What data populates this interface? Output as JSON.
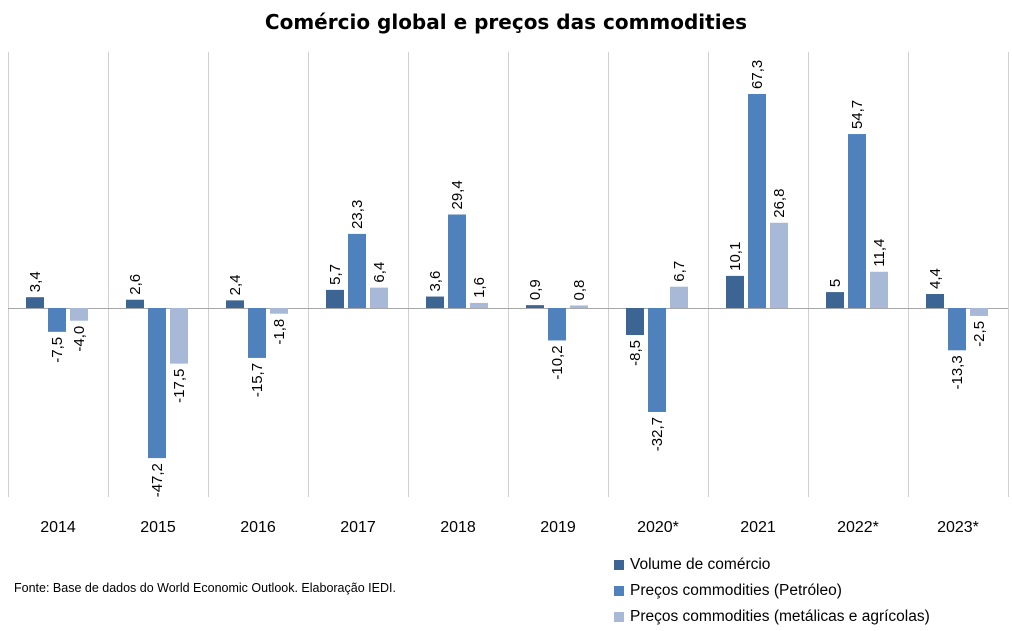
{
  "chart_data": {
    "type": "bar",
    "title": "Comércio global e preços das commodities",
    "categories": [
      "2014",
      "2015",
      "2016",
      "2017",
      "2018",
      "2019",
      "2020*",
      "2021",
      "2022*",
      "2023*"
    ],
    "series": [
      {
        "name": "Volume de comércio",
        "color": "#3d6593",
        "values": [
          3.4,
          2.6,
          2.4,
          5.7,
          3.6,
          0.9,
          -8.5,
          10.1,
          5,
          4.4
        ],
        "labels": [
          "3,4",
          "2,6",
          "2,4",
          "5,7",
          "3,6",
          "0,9",
          "-8,5",
          "10,1",
          "5",
          "4,4"
        ]
      },
      {
        "name": "Preços commodities (Petróleo)",
        "color": "#4f81bd",
        "values": [
          -7.5,
          -47.2,
          -15.7,
          23.3,
          29.4,
          -10.2,
          -32.7,
          67.3,
          54.7,
          -13.3
        ],
        "labels": [
          "-7,5",
          "-47,2",
          "-15,7",
          "23,3",
          "29,4",
          "-10,2",
          "-32,7",
          "67,3",
          "54,7",
          "-13,3"
        ]
      },
      {
        "name": "Preços commodities (metálicas e agrícolas)",
        "color": "#a8b9d8",
        "values": [
          -4.0,
          -17.5,
          -1.8,
          6.4,
          1.6,
          0.8,
          6.7,
          26.8,
          11.4,
          -2.5
        ],
        "labels": [
          "-4,0",
          "-17,5",
          "-1,8",
          "6,4",
          "1,6",
          "0,8",
          "6,7",
          "26,8",
          "11,4",
          "-2,5"
        ]
      }
    ],
    "ylim": [
      -60,
      80
    ],
    "grid": "vertical-category-separators",
    "legend": "bottom-right"
  },
  "footer": {
    "source": "Fonte: Base de dados do World Economic Outlook. Elaboração IEDI."
  }
}
